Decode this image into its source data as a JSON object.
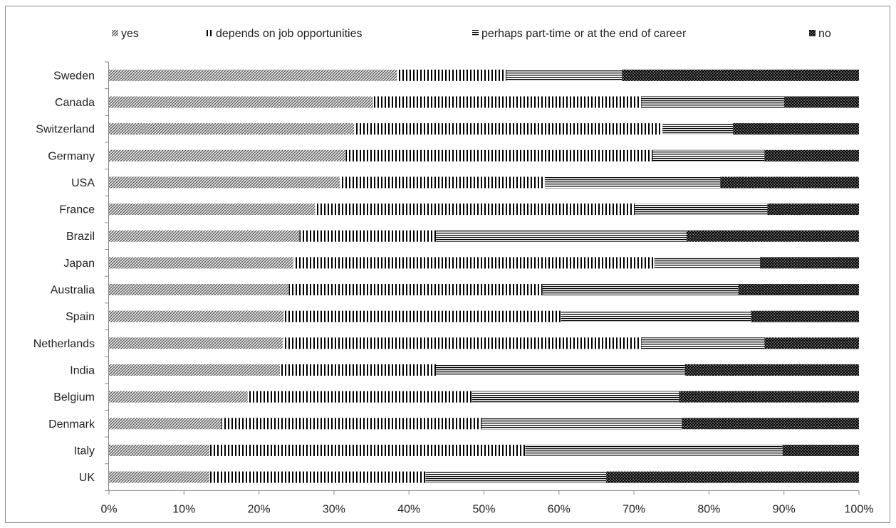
{
  "chart_data": {
    "type": "bar",
    "orientation": "horizontal",
    "stacked": "percent",
    "categories": [
      "Sweden",
      "Canada",
      "Switzerland",
      "Germany",
      "USA",
      "France",
      "Brazil",
      "Japan",
      "Australia",
      "Spain",
      "Netherlands",
      "India",
      "Belgium",
      "Denmark",
      "Italy",
      "UK"
    ],
    "series": [
      {
        "name": "yes",
        "pattern": "diagonal-crosshatch",
        "values": [
          38.4,
          35.2,
          32.7,
          31.6,
          30.8,
          27.5,
          25.4,
          24.6,
          24.0,
          23.3,
          23.2,
          22.8,
          18.5,
          15.0,
          13.4,
          13.4
        ]
      },
      {
        "name": "depends on job opportunities",
        "pattern": "vertical-lines",
        "values": [
          14.6,
          35.8,
          41.1,
          40.9,
          27.3,
          42.6,
          18.2,
          48.1,
          33.8,
          37.0,
          47.8,
          20.8,
          29.9,
          34.7,
          42.1,
          28.8
        ]
      },
      {
        "name": "perhaps part-time or at the end of career",
        "pattern": "horizontal-lines",
        "values": [
          15.4,
          19.0,
          9.4,
          14.9,
          23.4,
          17.7,
          33.4,
          14.1,
          26.1,
          25.3,
          16.4,
          33.2,
          27.6,
          26.7,
          34.3,
          24.1
        ]
      },
      {
        "name": "no",
        "pattern": "dotted-black",
        "values": [
          31.6,
          10.0,
          16.8,
          12.6,
          18.5,
          12.2,
          23.0,
          13.2,
          16.1,
          14.4,
          12.6,
          23.2,
          24.0,
          23.6,
          10.2,
          33.7
        ]
      }
    ],
    "xlim": [
      0,
      100
    ],
    "xticks": [
      "0%",
      "10%",
      "20%",
      "30%",
      "40%",
      "50%",
      "60%",
      "70%",
      "80%",
      "90%",
      "100%"
    ],
    "grid": false,
    "legend_position": "top",
    "colors": {
      "ink": "#000000",
      "text": "#222222",
      "axis": "#888888"
    }
  }
}
